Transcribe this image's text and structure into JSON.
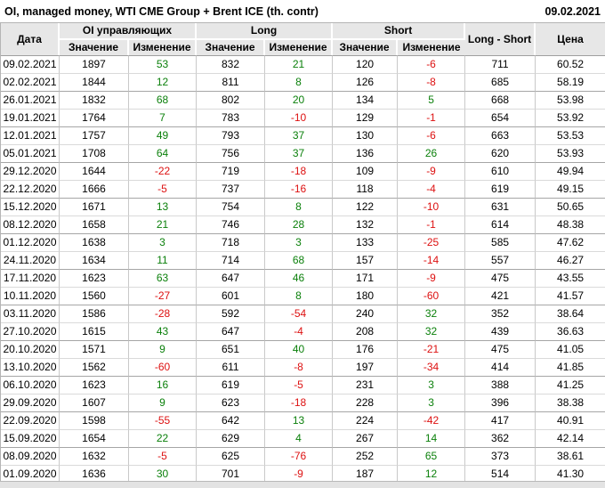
{
  "header": {
    "title": "OI, managed money, WTI CME Group + Brent ICE (th. contr)",
    "date": "09.02.2021"
  },
  "table": {
    "col_date": "Дата",
    "group_oi": "OI управляющих",
    "group_long": "Long",
    "group_short": "Short",
    "col_long_short": "Long - Short",
    "col_price": "Цена",
    "sub_value": "Значение",
    "sub_change": "Изменение",
    "colors": {
      "positive": "#0b800b",
      "negative": "#dd1111",
      "header_bg": "#e7e7e7"
    },
    "rows": [
      {
        "date": "09.02.2021",
        "oi": "1897",
        "oi_chg": "53",
        "long": "832",
        "long_chg": "21",
        "short": "120",
        "short_chg": "-6",
        "ls": "711",
        "price": "60.52"
      },
      {
        "date": "02.02.2021",
        "oi": "1844",
        "oi_chg": "12",
        "long": "811",
        "long_chg": "8",
        "short": "126",
        "short_chg": "-8",
        "ls": "685",
        "price": "58.19"
      },
      {
        "date": "26.01.2021",
        "oi": "1832",
        "oi_chg": "68",
        "long": "802",
        "long_chg": "20",
        "short": "134",
        "short_chg": "5",
        "ls": "668",
        "price": "53.98"
      },
      {
        "date": "19.01.2021",
        "oi": "1764",
        "oi_chg": "7",
        "long": "783",
        "long_chg": "-10",
        "short": "129",
        "short_chg": "-1",
        "ls": "654",
        "price": "53.92"
      },
      {
        "date": "12.01.2021",
        "oi": "1757",
        "oi_chg": "49",
        "long": "793",
        "long_chg": "37",
        "short": "130",
        "short_chg": "-6",
        "ls": "663",
        "price": "53.53"
      },
      {
        "date": "05.01.2021",
        "oi": "1708",
        "oi_chg": "64",
        "long": "756",
        "long_chg": "37",
        "short": "136",
        "short_chg": "26",
        "ls": "620",
        "price": "53.93"
      },
      {
        "date": "29.12.2020",
        "oi": "1644",
        "oi_chg": "-22",
        "long": "719",
        "long_chg": "-18",
        "short": "109",
        "short_chg": "-9",
        "ls": "610",
        "price": "49.94"
      },
      {
        "date": "22.12.2020",
        "oi": "1666",
        "oi_chg": "-5",
        "long": "737",
        "long_chg": "-16",
        "short": "118",
        "short_chg": "-4",
        "ls": "619",
        "price": "49.15"
      },
      {
        "date": "15.12.2020",
        "oi": "1671",
        "oi_chg": "13",
        "long": "754",
        "long_chg": "8",
        "short": "122",
        "short_chg": "-10",
        "ls": "631",
        "price": "50.65"
      },
      {
        "date": "08.12.2020",
        "oi": "1658",
        "oi_chg": "21",
        "long": "746",
        "long_chg": "28",
        "short": "132",
        "short_chg": "-1",
        "ls": "614",
        "price": "48.38"
      },
      {
        "date": "01.12.2020",
        "oi": "1638",
        "oi_chg": "3",
        "long": "718",
        "long_chg": "3",
        "short": "133",
        "short_chg": "-25",
        "ls": "585",
        "price": "47.62"
      },
      {
        "date": "24.11.2020",
        "oi": "1634",
        "oi_chg": "11",
        "long": "714",
        "long_chg": "68",
        "short": "157",
        "short_chg": "-14",
        "ls": "557",
        "price": "46.27"
      },
      {
        "date": "17.11.2020",
        "oi": "1623",
        "oi_chg": "63",
        "long": "647",
        "long_chg": "46",
        "short": "171",
        "short_chg": "-9",
        "ls": "475",
        "price": "43.55"
      },
      {
        "date": "10.11.2020",
        "oi": "1560",
        "oi_chg": "-27",
        "long": "601",
        "long_chg": "8",
        "short": "180",
        "short_chg": "-60",
        "ls": "421",
        "price": "41.57"
      },
      {
        "date": "03.11.2020",
        "oi": "1586",
        "oi_chg": "-28",
        "long": "592",
        "long_chg": "-54",
        "short": "240",
        "short_chg": "32",
        "ls": "352",
        "price": "38.64"
      },
      {
        "date": "27.10.2020",
        "oi": "1615",
        "oi_chg": "43",
        "long": "647",
        "long_chg": "-4",
        "short": "208",
        "short_chg": "32",
        "ls": "439",
        "price": "36.63"
      },
      {
        "date": "20.10.2020",
        "oi": "1571",
        "oi_chg": "9",
        "long": "651",
        "long_chg": "40",
        "short": "176",
        "short_chg": "-21",
        "ls": "475",
        "price": "41.05"
      },
      {
        "date": "13.10.2020",
        "oi": "1562",
        "oi_chg": "-60",
        "long": "611",
        "long_chg": "-8",
        "short": "197",
        "short_chg": "-34",
        "ls": "414",
        "price": "41.85"
      },
      {
        "date": "06.10.2020",
        "oi": "1623",
        "oi_chg": "16",
        "long": "619",
        "long_chg": "-5",
        "short": "231",
        "short_chg": "3",
        "ls": "388",
        "price": "41.25"
      },
      {
        "date": "29.09.2020",
        "oi": "1607",
        "oi_chg": "9",
        "long": "623",
        "long_chg": "-18",
        "short": "228",
        "short_chg": "3",
        "ls": "396",
        "price": "38.38"
      },
      {
        "date": "22.09.2020",
        "oi": "1598",
        "oi_chg": "-55",
        "long": "642",
        "long_chg": "13",
        "short": "224",
        "short_chg": "-42",
        "ls": "417",
        "price": "40.91"
      },
      {
        "date": "15.09.2020",
        "oi": "1654",
        "oi_chg": "22",
        "long": "629",
        "long_chg": "4",
        "short": "267",
        "short_chg": "14",
        "ls": "362",
        "price": "42.14"
      },
      {
        "date": "08.09.2020",
        "oi": "1632",
        "oi_chg": "-5",
        "long": "625",
        "long_chg": "-76",
        "short": "252",
        "short_chg": "65",
        "ls": "373",
        "price": "38.61"
      },
      {
        "date": "01.09.2020",
        "oi": "1636",
        "oi_chg": "30",
        "long": "701",
        "long_chg": "-9",
        "short": "187",
        "short_chg": "12",
        "ls": "514",
        "price": "41.30"
      }
    ]
  }
}
